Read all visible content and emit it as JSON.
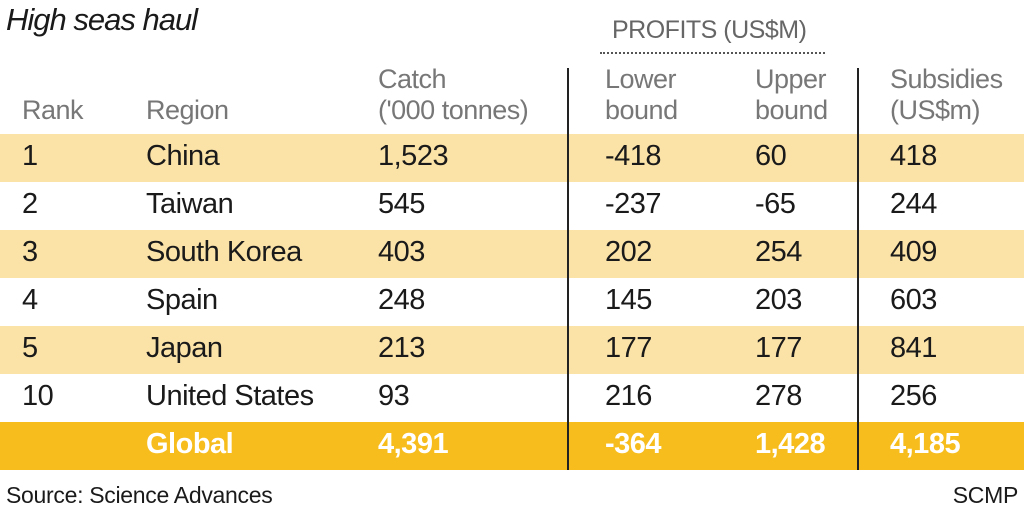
{
  "chart_data": {
    "type": "table",
    "title": "High seas haul",
    "group_header": "PROFITS (US$M)",
    "columns": [
      {
        "key": "rank",
        "label": [
          "Rank"
        ]
      },
      {
        "key": "region",
        "label": [
          "Region"
        ]
      },
      {
        "key": "catch",
        "label": [
          "Catch",
          "('000 tonnes)"
        ]
      },
      {
        "key": "lower",
        "label": [
          "Lower",
          "bound"
        ]
      },
      {
        "key": "upper",
        "label": [
          "Upper",
          "bound"
        ]
      },
      {
        "key": "subsidies",
        "label": [
          "Subsidies",
          "(US$m)"
        ]
      }
    ],
    "rows": [
      {
        "rank": "1",
        "region": "China",
        "catch": "1,523",
        "lower": "-418",
        "upper": "60",
        "subsidies": "418"
      },
      {
        "rank": "2",
        "region": "Taiwan",
        "catch": "545",
        "lower": "-237",
        "upper": "-65",
        "subsidies": "244"
      },
      {
        "rank": "3",
        "region": "South Korea",
        "catch": "403",
        "lower": "202",
        "upper": "254",
        "subsidies": "409"
      },
      {
        "rank": "4",
        "region": "Spain",
        "catch": "248",
        "lower": "145",
        "upper": "203",
        "subsidies": "603"
      },
      {
        "rank": "5",
        "region": "Japan",
        "catch": "213",
        "lower": "177",
        "upper": "177",
        "subsidies": "841"
      },
      {
        "rank": "10",
        "region": "United States",
        "catch": "93",
        "lower": "216",
        "upper": "278",
        "subsidies": "256"
      },
      {
        "rank": "",
        "region": "Global",
        "catch": "4,391",
        "lower": "-364",
        "upper": "1,428",
        "subsidies": "4,185"
      }
    ],
    "source": "Source: Science Advances",
    "credit": "SCMP",
    "colors": {
      "band": "#fbe3a8",
      "total": "#f7bd1d"
    }
  }
}
